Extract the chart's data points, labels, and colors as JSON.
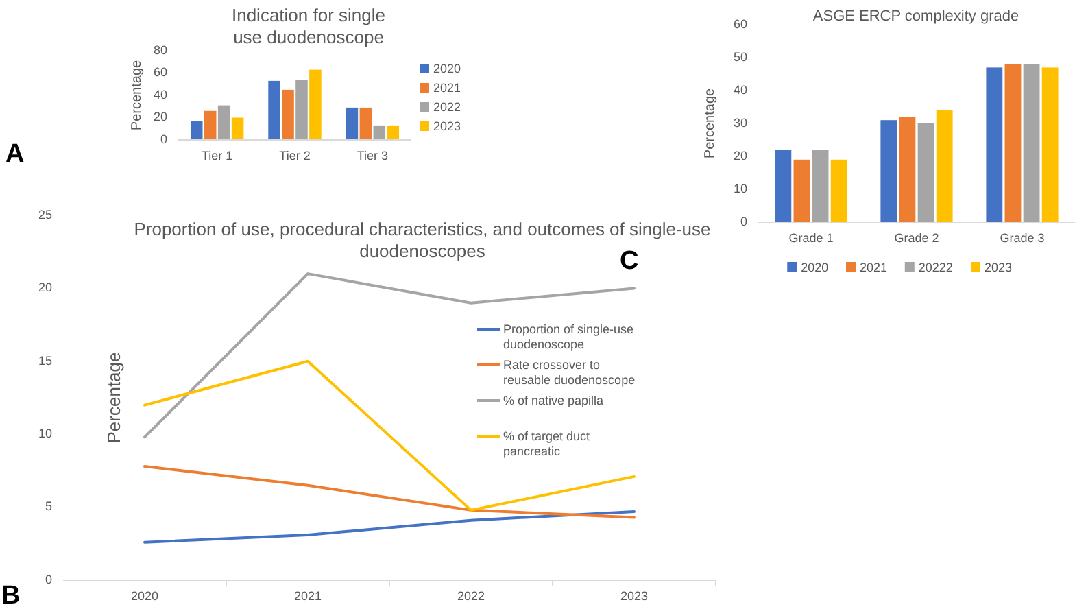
{
  "chart_data": [
    {
      "type": "bar",
      "title": "Indication for single use duodenoscope",
      "ylabel": "Percentage",
      "categories": [
        "Tier 1",
        "Tier 2",
        "Tier 3"
      ],
      "ylim": [
        0,
        80
      ],
      "yticks": [
        0,
        20,
        40,
        60,
        80
      ],
      "legend": "right",
      "grid": false,
      "annotations": [
        "A"
      ],
      "series": [
        {
          "name": "2020",
          "color": "#4472c4",
          "values": [
            17,
            53,
            29
          ]
        },
        {
          "name": "2021",
          "color": "#ed7d31",
          "values": [
            26,
            45,
            29
          ]
        },
        {
          "name": "2022",
          "color": "#a5a5a5",
          "values": [
            31,
            54,
            13
          ]
        },
        {
          "name": "2023",
          "color": "#ffc000",
          "values": [
            20,
            63,
            13
          ]
        }
      ]
    },
    {
      "type": "line",
      "title": "Proportion of use, procedural characteristics, and outcomes of single-use duodenoscopes",
      "ylabel": "Percentage",
      "categories": [
        "2020",
        "2021",
        "2022",
        "2023"
      ],
      "ylim": [
        0,
        25
      ],
      "yticks": [
        0,
        5,
        10,
        15,
        20,
        25
      ],
      "legend": "right",
      "grid": false,
      "marker": "none",
      "line_style": "solid",
      "annotations": [
        "B"
      ],
      "series": [
        {
          "name": "Proportion of single-use duodenoscope",
          "color": "#4472c4",
          "values": [
            2.6,
            3.1,
            4.1,
            4.7
          ]
        },
        {
          "name": "Rate crossover to reusable duodenoscope",
          "color": "#ed7d31",
          "values": [
            7.8,
            6.5,
            4.8,
            4.3
          ]
        },
        {
          "name": "% of native papilla",
          "color": "#a5a5a5",
          "values": [
            9.8,
            21,
            19,
            20
          ]
        },
        {
          "name": "% of target duct pancreatic",
          "color": "#ffc000",
          "values": [
            12,
            15,
            4.8,
            7.1
          ]
        }
      ]
    },
    {
      "type": "bar",
      "title": "ASGE ERCP complexity grade",
      "ylabel": "Percentage",
      "categories": [
        "Grade 1",
        "Grade 2",
        "Grade 3"
      ],
      "ylim": [
        0,
        60
      ],
      "yticks": [
        0,
        10,
        20,
        30,
        40,
        50,
        60
      ],
      "legend": "bottom",
      "grid": false,
      "annotations": [
        "C"
      ],
      "series": [
        {
          "name": "2020",
          "color": "#4472c4",
          "values": [
            22,
            31,
            47
          ]
        },
        {
          "name": "2021",
          "color": "#ed7d31",
          "values": [
            19,
            32,
            48
          ]
        },
        {
          "name": "20222",
          "color": "#a5a5a5",
          "values": [
            22,
            30,
            48
          ]
        },
        {
          "name": "2023",
          "color": "#ffc000",
          "values": [
            19,
            34,
            47
          ]
        }
      ]
    }
  ]
}
